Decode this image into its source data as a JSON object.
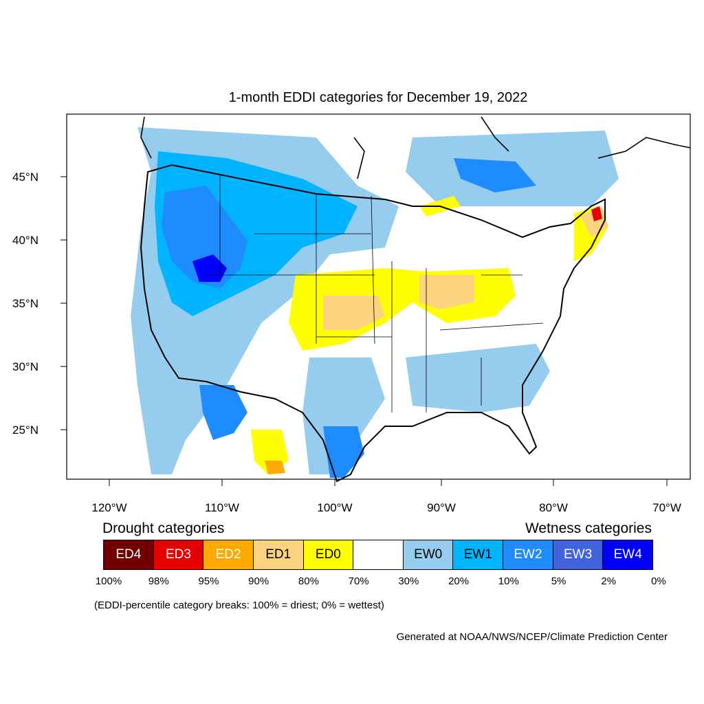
{
  "title": "1-month EDDI categories for December 19, 2022",
  "lat_labels": [
    "45°N",
    "40°N",
    "35°N",
    "30°N",
    "25°N"
  ],
  "lon_labels": [
    "120°W",
    "110°W",
    "100°W",
    "90°W",
    "80°W",
    "70°W"
  ],
  "legend": {
    "drought_heading": "Drought categories",
    "wetness_heading": "Wetness categories",
    "categories": [
      {
        "label": "ED4",
        "color": "#730000",
        "text_color": "#ffffff"
      },
      {
        "label": "ED3",
        "color": "#e60000",
        "text_color": "#ffffff"
      },
      {
        "label": "ED2",
        "color": "#ffaa00",
        "text_color": "#ffffff"
      },
      {
        "label": "ED1",
        "color": "#fcd37f",
        "text_color": "#000000"
      },
      {
        "label": "ED0",
        "color": "#ffff00",
        "text_color": "#000000"
      },
      {
        "label": "",
        "color": "#ffffff",
        "text_color": "#000000"
      },
      {
        "label": "EW0",
        "color": "#96cdef",
        "text_color": "#000000"
      },
      {
        "label": "EW1",
        "color": "#00b4ff",
        "text_color": "#000000"
      },
      {
        "label": "EW2",
        "color": "#1e8cff",
        "text_color": "#ffffff"
      },
      {
        "label": "EW3",
        "color": "#4164dc",
        "text_color": "#ffffff"
      },
      {
        "label": "EW4",
        "color": "#0000ff",
        "text_color": "#ffffff"
      }
    ],
    "percentiles": [
      "100%",
      "98%",
      "95%",
      "90%",
      "80%",
      "70%",
      "30%",
      "20%",
      "10%",
      "5%",
      "2%",
      "0%"
    ]
  },
  "breaks_note": "(EDDI-percentile category breaks: 100% = driest; 0% = wettest)",
  "credit": "Generated at NOAA/NWS/NCEP/Climate Prediction Center"
}
